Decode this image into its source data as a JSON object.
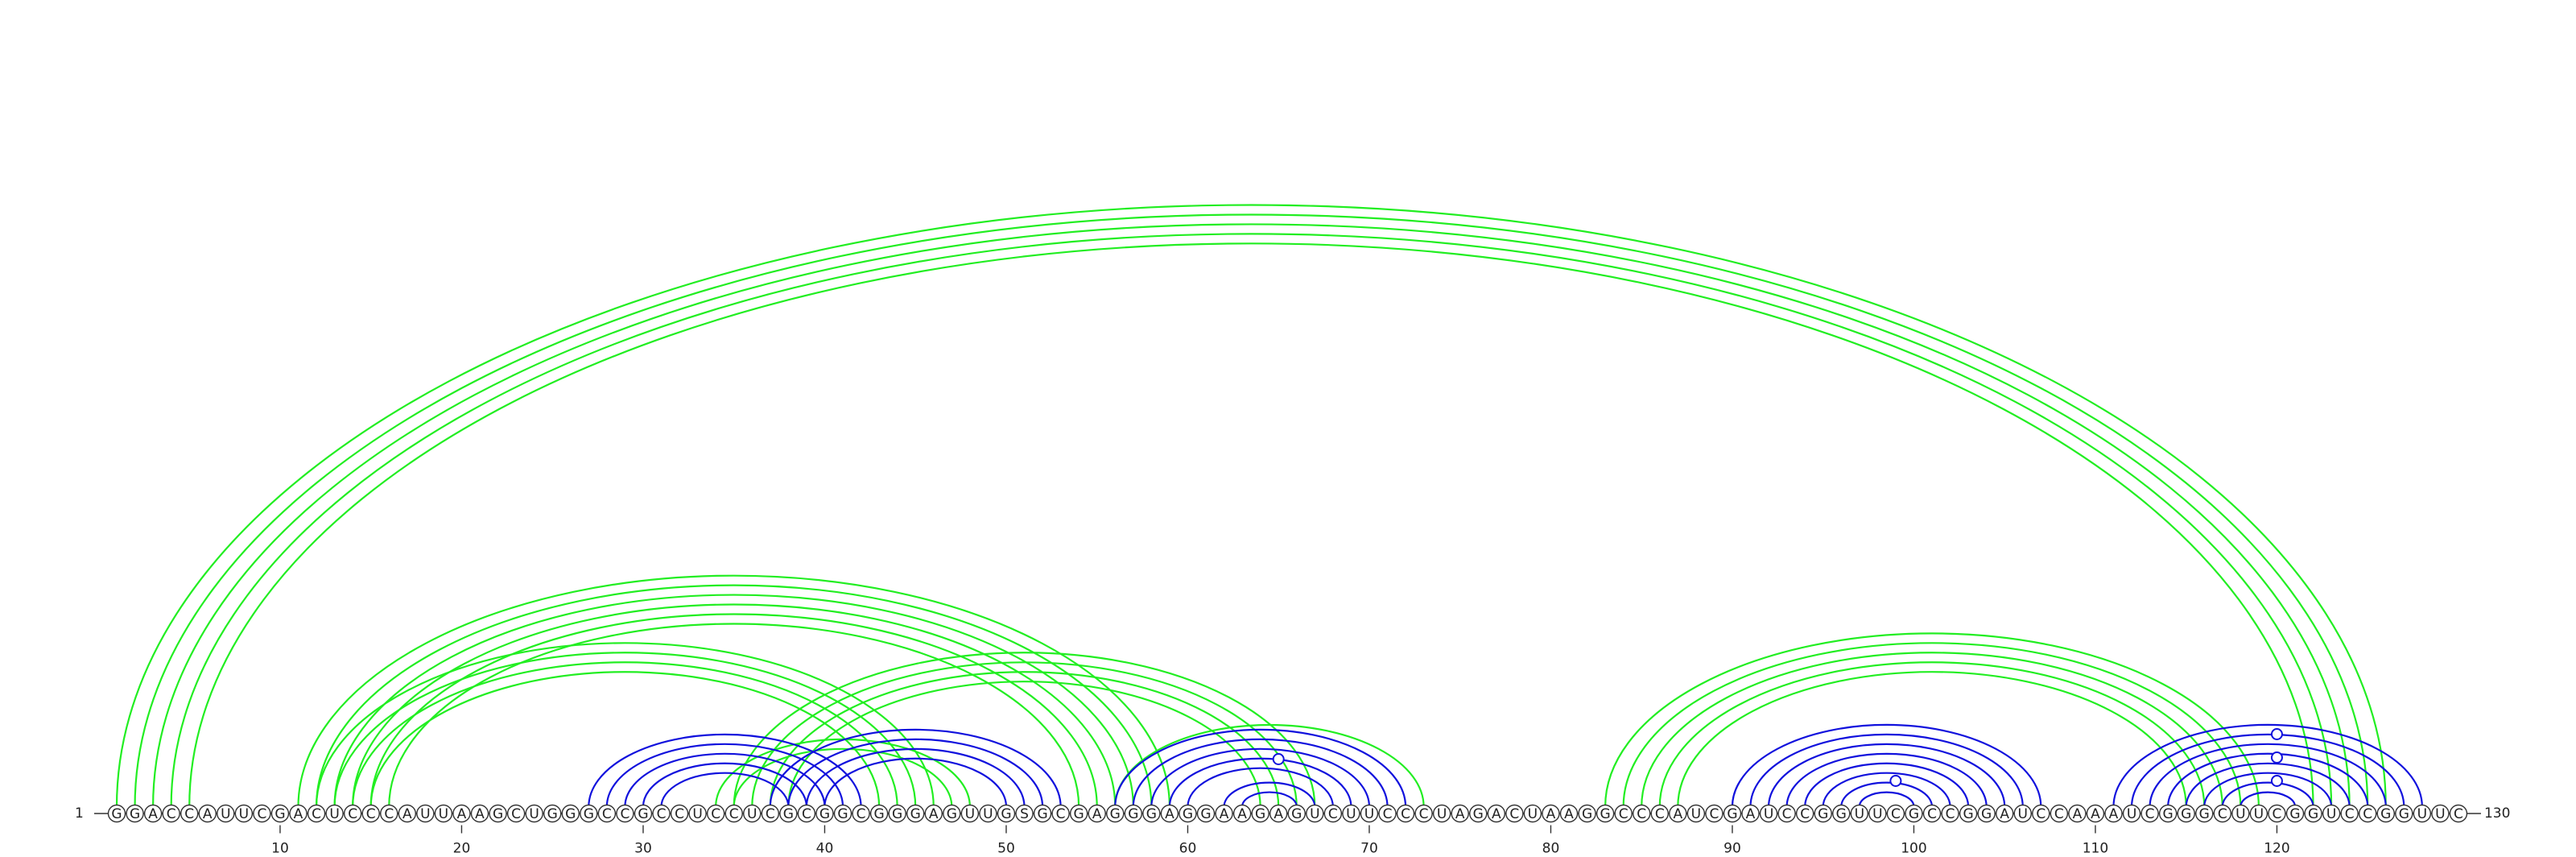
{
  "diagram": {
    "sequence": "GGACCAUUCGACUCCCAUUAAGCUGGGCCGCCUCCUCGCGGCGGGAGUUGSGCGAGGGAGGAAGAGUCUUCCCUAGACUAAGGCCCAUCGAUCCGGUUCGCCGGAUCCAAAUCGGGCUUCGGUCCGGUUC",
    "length": 130,
    "start_label": "1",
    "end_label": "130",
    "ticks": [
      "10",
      "20",
      "30",
      "40",
      "50",
      "60",
      "70",
      "80",
      "90",
      "100",
      "110",
      "120"
    ],
    "colors": {
      "green": "#22ee22",
      "blue": "#1111dd",
      "line": "#333333"
    },
    "arc_groups": [
      {
        "color": "green",
        "pairs": [
          [
            1,
            126
          ],
          [
            2,
            125
          ],
          [
            3,
            124
          ],
          [
            4,
            123
          ],
          [
            5,
            122
          ]
        ]
      },
      {
        "color": "green",
        "pairs": [
          [
            11,
            59
          ],
          [
            12,
            58
          ],
          [
            13,
            57
          ],
          [
            14,
            56
          ],
          [
            15,
            55
          ],
          [
            16,
            54
          ]
        ]
      },
      {
        "color": "green",
        "pairs": [
          [
            12,
            46
          ],
          [
            13,
            45
          ],
          [
            14,
            44
          ],
          [
            15,
            43
          ]
        ]
      },
      {
        "color": "green",
        "pairs": [
          [
            34,
            48
          ],
          [
            35,
            47
          ]
        ]
      },
      {
        "color": "green",
        "pairs": [
          [
            35,
            67
          ],
          [
            36,
            66
          ],
          [
            37,
            65
          ],
          [
            38,
            64
          ]
        ]
      },
      {
        "color": "green",
        "pairs": [
          [
            56,
            73
          ]
        ]
      },
      {
        "color": "green",
        "pairs": [
          [
            83,
            119
          ],
          [
            84,
            118
          ],
          [
            85,
            117
          ],
          [
            86,
            116
          ],
          [
            87,
            115
          ]
        ]
      },
      {
        "color": "blue",
        "pairs": [
          [
            27,
            42
          ],
          [
            28,
            41
          ],
          [
            29,
            40
          ],
          [
            30,
            39
          ],
          [
            31,
            38
          ]
        ]
      },
      {
        "color": "blue",
        "pairs": [
          [
            37,
            53
          ],
          [
            38,
            52
          ],
          [
            39,
            51
          ],
          [
            40,
            50
          ]
        ]
      },
      {
        "color": "blue",
        "pairs": [
          [
            56,
            72
          ],
          [
            57,
            71
          ],
          [
            58,
            70
          ],
          [
            59,
            69
          ],
          [
            60,
            68
          ],
          [
            62,
            67
          ],
          [
            63,
            66
          ]
        ]
      },
      {
        "color": "blue",
        "pairs": [
          [
            90,
            107
          ],
          [
            91,
            106
          ],
          [
            92,
            105
          ],
          [
            93,
            104
          ],
          [
            94,
            103
          ],
          [
            95,
            102
          ],
          [
            96,
            101
          ],
          [
            97,
            100
          ]
        ]
      },
      {
        "color": "blue",
        "pairs": [
          [
            111,
            128
          ],
          [
            112,
            127
          ],
          [
            113,
            126
          ],
          [
            114,
            125
          ],
          [
            115,
            124
          ],
          [
            116,
            123
          ],
          [
            117,
            122
          ],
          [
            118,
            121
          ]
        ]
      }
    ],
    "hairpin_markers": [
      65,
      99,
      120
    ]
  }
}
